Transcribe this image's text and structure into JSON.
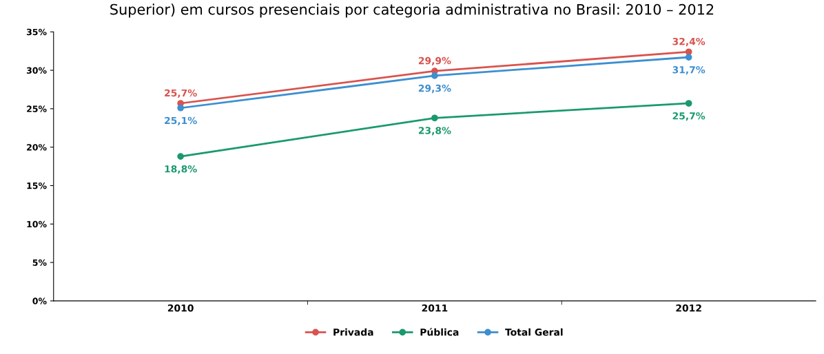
{
  "chart_data": {
    "type": "line",
    "title": "Superior) em cursos presenciais por categoria administrativa no Brasil: 2010 – 2012",
    "categories": [
      "2010",
      "2011",
      "2012"
    ],
    "series": [
      {
        "name": "Privada",
        "color": "#d9534f",
        "values": [
          25.7,
          29.9,
          32.4
        ],
        "value_labels": [
          "25,7%",
          "29,9%",
          "32,4%"
        ]
      },
      {
        "name": "Pública",
        "color": "#1a9a6c",
        "values": [
          18.8,
          23.8,
          25.7
        ],
        "value_labels": [
          "18,8%",
          "23,8%",
          "25,7%"
        ]
      },
      {
        "name": "Total Geral",
        "color": "#3d8fd0",
        "values": [
          25.1,
          29.3,
          31.7
        ],
        "value_labels": [
          "25,1%",
          "29,3%",
          "31,7%"
        ]
      }
    ],
    "ylim": [
      0,
      35
    ],
    "yticks": [
      {
        "value": 0,
        "label": "0%"
      },
      {
        "value": 5,
        "label": "5%"
      },
      {
        "value": 10,
        "label": "10%"
      },
      {
        "value": 15,
        "label": "15%"
      },
      {
        "value": 20,
        "label": "20%"
      },
      {
        "value": 25,
        "label": "25%"
      },
      {
        "value": 30,
        "label": "30%"
      },
      {
        "value": 35,
        "label": "35%"
      }
    ],
    "grid": false,
    "legend": "bottom",
    "marker": "circle",
    "line_style": "solid"
  }
}
